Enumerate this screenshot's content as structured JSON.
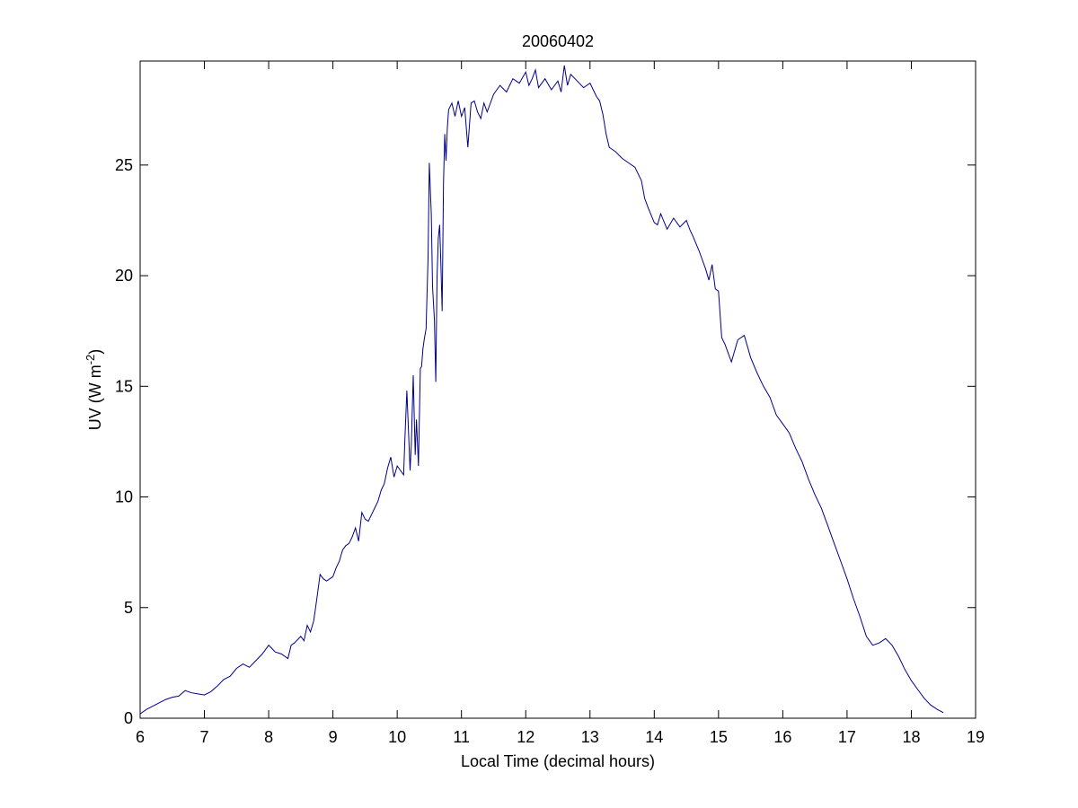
{
  "chart_data": {
    "type": "line",
    "title": "20060402",
    "xlabel": "Local Time (decimal hours)",
    "ylabel_main": "UV (W m",
    "ylabel_sup": "-2",
    "ylabel_close": ")",
    "xlim": [
      6,
      19
    ],
    "ylim": [
      0,
      29.7
    ],
    "xticks": [
      6,
      7,
      8,
      9,
      10,
      11,
      12,
      13,
      14,
      15,
      16,
      17,
      18,
      19
    ],
    "yticks": [
      0,
      5,
      10,
      15,
      20,
      25
    ],
    "grid": false,
    "line_color": "#00008b",
    "series": [
      {
        "x": [
          6.0,
          6.1,
          6.2,
          6.3,
          6.4,
          6.5,
          6.6,
          6.7,
          6.8,
          6.9,
          7.0,
          7.1,
          7.2,
          7.3,
          7.4,
          7.5,
          7.6,
          7.7,
          7.8,
          7.9,
          8.0,
          8.05,
          8.1,
          8.2,
          8.3,
          8.35,
          8.4,
          8.5,
          8.55,
          8.6,
          8.65,
          8.7,
          8.75,
          8.8,
          8.85,
          8.9,
          9.0,
          9.05,
          9.1,
          9.15,
          9.2,
          9.25,
          9.3,
          9.35,
          9.4,
          9.45,
          9.5,
          9.55,
          9.6,
          9.65,
          9.7,
          9.75,
          9.8,
          9.85,
          9.9,
          9.95,
          10.0,
          10.05,
          10.1,
          10.12,
          10.15,
          10.2,
          10.22,
          10.25,
          10.28,
          10.3,
          10.33,
          10.36,
          10.38,
          10.4,
          10.42,
          10.45,
          10.48,
          10.5,
          10.53,
          10.55,
          10.58,
          10.6,
          10.62,
          10.64,
          10.66,
          10.68,
          10.7,
          10.72,
          10.74,
          10.76,
          10.78,
          10.8,
          10.85,
          10.9,
          10.95,
          11.0,
          11.05,
          11.1,
          11.15,
          11.2,
          11.25,
          11.3,
          11.35,
          11.4,
          11.5,
          11.6,
          11.7,
          11.8,
          11.9,
          12.0,
          12.05,
          12.1,
          12.15,
          12.2,
          12.3,
          12.4,
          12.5,
          12.55,
          12.6,
          12.65,
          12.7,
          12.8,
          12.9,
          13.0,
          13.1,
          13.15,
          13.2,
          13.25,
          13.3,
          13.4,
          13.5,
          13.6,
          13.7,
          13.8,
          13.85,
          13.9,
          14.0,
          14.05,
          14.1,
          14.2,
          14.3,
          14.4,
          14.5,
          14.55,
          14.6,
          14.7,
          14.8,
          14.85,
          14.9,
          14.95,
          15.0,
          15.05,
          15.1,
          15.2,
          15.3,
          15.4,
          15.5,
          15.6,
          15.7,
          15.8,
          15.9,
          16.0,
          16.1,
          16.2,
          16.3,
          16.4,
          16.5,
          16.6,
          16.7,
          16.8,
          16.9,
          17.0,
          17.1,
          17.2,
          17.3,
          17.4,
          17.5,
          17.6,
          17.7,
          17.8,
          17.9,
          18.0,
          18.1,
          18.2,
          18.3,
          18.4,
          18.5
        ],
        "y": [
          0.2,
          0.4,
          0.55,
          0.7,
          0.85,
          0.95,
          1.0,
          1.25,
          1.15,
          1.1,
          1.05,
          1.2,
          1.45,
          1.75,
          1.9,
          2.25,
          2.45,
          2.3,
          2.6,
          2.9,
          3.3,
          3.15,
          3.0,
          2.9,
          2.7,
          3.3,
          3.4,
          3.7,
          3.5,
          4.2,
          3.9,
          4.4,
          5.4,
          6.5,
          6.3,
          6.2,
          6.4,
          6.8,
          7.1,
          7.6,
          7.8,
          7.9,
          8.2,
          8.6,
          8.0,
          9.3,
          9.0,
          8.9,
          9.2,
          9.5,
          9.8,
          10.3,
          10.6,
          11.3,
          11.8,
          10.9,
          11.4,
          11.2,
          11.0,
          12.6,
          14.8,
          11.2,
          12.4,
          15.5,
          11.9,
          13.5,
          11.4,
          15.8,
          15.9,
          16.7,
          17.1,
          17.6,
          20.8,
          25.1,
          22.8,
          19.5,
          18.0,
          15.2,
          19.9,
          21.7,
          22.3,
          20.5,
          18.4,
          24.2,
          26.4,
          25.2,
          26.7,
          27.5,
          27.8,
          27.2,
          27.9,
          27.2,
          27.6,
          25.8,
          27.8,
          27.9,
          27.4,
          27.1,
          27.8,
          27.4,
          28.2,
          28.6,
          28.3,
          28.9,
          28.7,
          29.2,
          28.6,
          28.9,
          29.3,
          28.5,
          28.9,
          28.4,
          28.8,
          28.3,
          29.5,
          28.6,
          29.1,
          28.8,
          28.5,
          28.7,
          28.1,
          27.9,
          27.3,
          26.4,
          25.8,
          25.6,
          25.3,
          25.1,
          24.9,
          24.3,
          23.5,
          23.1,
          22.4,
          22.3,
          22.8,
          22.1,
          22.6,
          22.2,
          22.5,
          22.1,
          21.8,
          21.1,
          20.3,
          19.8,
          20.5,
          19.4,
          19.3,
          17.2,
          16.9,
          16.1,
          17.1,
          17.3,
          16.3,
          15.6,
          15.0,
          14.5,
          13.7,
          13.3,
          12.9,
          12.2,
          11.6,
          10.8,
          10.1,
          9.5,
          8.7,
          7.9,
          7.1,
          6.3,
          5.4,
          4.6,
          3.7,
          3.3,
          3.4,
          3.6,
          3.3,
          2.8,
          2.2,
          1.7,
          1.3,
          0.9,
          0.6,
          0.4,
          0.25
        ]
      }
    ]
  }
}
